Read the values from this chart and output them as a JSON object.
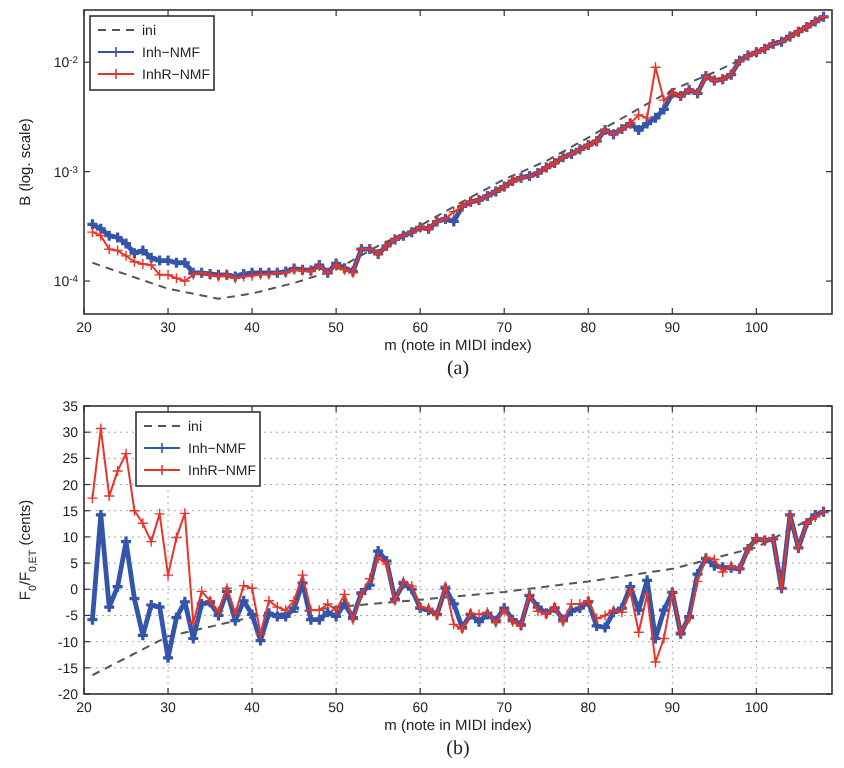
{
  "chart_data": [
    {
      "type": "line",
      "xlabel": "m (note in MIDI index)",
      "ylabel": "B (log. scale)",
      "log": "y",
      "xlim": [
        20,
        109
      ],
      "xticks": [
        20,
        30,
        40,
        50,
        60,
        70,
        80,
        90,
        100
      ],
      "ylim": [
        5e-05,
        0.03
      ],
      "yticks": [
        {
          "value": 0.0001,
          "label": "10$^{-4}$"
        },
        {
          "value": 0.001,
          "label": "10$^{-3}$"
        },
        {
          "value": 0.01,
          "label": "10$^{-2}$"
        }
      ],
      "grid": false,
      "legend": "top left",
      "annotations": [
        "(a)"
      ],
      "series": [
        {
          "name": "ini",
          "color": "#555555",
          "line_style": "dashed",
          "marker": "none",
          "x": [
            21,
            25,
            30,
            36,
            40,
            45,
            50,
            55,
            60,
            65,
            70,
            75,
            80,
            85,
            90,
            95,
            100,
            105,
            108
          ],
          "values": [
            0.000147,
            0.000115,
            8.5e-05,
            6.9e-05,
            7.7e-05,
            9.6e-05,
            0.000127,
            0.00021,
            0.00032,
            0.00053,
            0.00085,
            0.00125,
            0.00205,
            0.0034,
            0.0056,
            0.0081,
            0.0123,
            0.019,
            0.027
          ]
        },
        {
          "name": "Inh−NMF",
          "color": "#3355aa",
          "line_style": "solid",
          "marker": "cross",
          "x": [
            21,
            22,
            23,
            24,
            25,
            26,
            27,
            28,
            29,
            30,
            31,
            32,
            33,
            34,
            35,
            36,
            37,
            38,
            39,
            40,
            41,
            42,
            43,
            44,
            45,
            46,
            47,
            48,
            49,
            50,
            51,
            52,
            53,
            54,
            55,
            56,
            57,
            58,
            59,
            60,
            61,
            62,
            63,
            64,
            65,
            66,
            67,
            68,
            69,
            70,
            71,
            72,
            73,
            74,
            75,
            76,
            77,
            78,
            79,
            80,
            81,
            82,
            83,
            84,
            85,
            86,
            87,
            88,
            89,
            90,
            91,
            92,
            93,
            94,
            95,
            96,
            97,
            98,
            99,
            100,
            101,
            102,
            103,
            104,
            105,
            106,
            107,
            108
          ],
          "values": [
            0.00033,
            0.0003,
            0.00026,
            0.00025,
            0.00022,
            0.00018,
            0.00019,
            0.000163,
            0.000154,
            0.000154,
            0.000147,
            0.000147,
            0.000119,
            0.000119,
            0.000116,
            0.000114,
            0.000114,
            0.00011,
            0.000116,
            0.000119,
            0.000119,
            0.000119,
            0.000119,
            0.000122,
            0.00013,
            0.000127,
            0.000125,
            0.00014,
            0.000119,
            0.000145,
            0.000131,
            0.000122,
            0.000196,
            0.000196,
            0.000177,
            0.00021,
            0.00024,
            0.00026,
            0.00028,
            0.00031,
            0.0003,
            0.00035,
            0.00037,
            0.00035,
            0.00048,
            0.00053,
            0.00055,
            0.0006,
            0.00066,
            0.00073,
            0.00082,
            0.00088,
            0.00091,
            0.00097,
            0.00109,
            0.0012,
            0.00135,
            0.00145,
            0.0016,
            0.00175,
            0.0019,
            0.0024,
            0.0022,
            0.00245,
            0.00275,
            0.0024,
            0.00275,
            0.0031,
            0.0037,
            0.0052,
            0.0049,
            0.0056,
            0.0052,
            0.0075,
            0.0068,
            0.007,
            0.0077,
            0.0103,
            0.0115,
            0.0123,
            0.0133,
            0.0147,
            0.0154,
            0.0172,
            0.019,
            0.021,
            0.0235,
            0.026
          ]
        },
        {
          "name": "InhR−NMF",
          "color": "#e8352a",
          "line_style": "solid",
          "marker": "cross",
          "x": [
            21,
            22,
            23,
            24,
            25,
            26,
            27,
            28,
            29,
            30,
            31,
            32,
            33,
            34,
            35,
            36,
            37,
            38,
            39,
            40,
            41,
            42,
            43,
            44,
            45,
            46,
            47,
            48,
            49,
            50,
            51,
            52,
            53,
            54,
            55,
            56,
            57,
            58,
            59,
            60,
            61,
            62,
            63,
            64,
            65,
            66,
            67,
            68,
            69,
            70,
            71,
            72,
            73,
            74,
            75,
            76,
            77,
            78,
            79,
            80,
            81,
            82,
            83,
            84,
            85,
            86,
            87,
            88,
            89,
            90,
            91,
            92,
            93,
            94,
            95,
            96,
            97,
            98,
            99,
            100,
            101,
            102,
            103,
            104,
            105,
            106,
            107,
            108
          ],
          "values": [
            0.00028,
            0.00026,
            0.000195,
            0.00019,
            0.00017,
            0.00015,
            0.000143,
            0.00014,
            0.000114,
            0.000114,
            0.000106,
            0.0001,
            0.000115,
            0.000119,
            0.000114,
            0.00011,
            0.000114,
            0.000106,
            0.00011,
            0.000112,
            0.000115,
            0.000115,
            0.000119,
            0.000119,
            0.000127,
            0.000125,
            0.000122,
            0.000137,
            0.000119,
            0.00014,
            0.000127,
            0.000119,
            0.000196,
            0.000196,
            0.000177,
            0.00021,
            0.00024,
            0.00026,
            0.00028,
            0.00031,
            0.0003,
            0.00035,
            0.00037,
            0.00043,
            0.00048,
            0.00053,
            0.00055,
            0.0006,
            0.00066,
            0.00073,
            0.00082,
            0.00088,
            0.00091,
            0.00097,
            0.00109,
            0.0012,
            0.00135,
            0.00145,
            0.0016,
            0.00175,
            0.0019,
            0.0024,
            0.0022,
            0.00245,
            0.00275,
            0.0033,
            0.0031,
            0.009,
            0.0045,
            0.0052,
            0.0049,
            0.0056,
            0.0052,
            0.0075,
            0.0068,
            0.007,
            0.0077,
            0.0103,
            0.0115,
            0.0123,
            0.0133,
            0.0147,
            0.0154,
            0.0172,
            0.019,
            0.021,
            0.0235,
            0.026
          ]
        }
      ]
    },
    {
      "type": "line",
      "xlabel": "m (note in MIDI index)",
      "ylabel": "F$_{0}$/F$_{0,ET}$ (cents)",
      "xlim": [
        20,
        109
      ],
      "xticks": [
        20,
        30,
        40,
        50,
        60,
        70,
        80,
        90,
        100
      ],
      "ylim": [
        -20,
        35
      ],
      "yticks": [
        -20,
        -15,
        -10,
        -5,
        0,
        5,
        10,
        15,
        20,
        25,
        30,
        35
      ],
      "grid": true,
      "legend": "top left",
      "annotations": [
        "(b)"
      ],
      "series": [
        {
          "name": "ini",
          "color": "#555555",
          "line_style": "dashed",
          "marker": "none",
          "x": [
            21,
            30,
            40,
            50,
            60,
            70,
            80,
            90,
            100,
            108
          ],
          "values": [
            -16.4,
            -9,
            -5.3,
            -3.4,
            -2,
            -0.5,
            1.5,
            3.9,
            8,
            14.8
          ]
        },
        {
          "name": "Inh−NMF",
          "color": "#3355aa",
          "line_style": "solid",
          "marker": "cross",
          "x": [
            21,
            22,
            23,
            24,
            25,
            26,
            27,
            28,
            29,
            30,
            31,
            32,
            33,
            34,
            35,
            36,
            37,
            38,
            39,
            40,
            41,
            42,
            43,
            44,
            45,
            46,
            47,
            48,
            49,
            50,
            51,
            52,
            53,
            54,
            55,
            56,
            57,
            58,
            59,
            60,
            61,
            62,
            63,
            64,
            65,
            66,
            67,
            68,
            69,
            70,
            71,
            72,
            73,
            74,
            75,
            76,
            77,
            78,
            79,
            80,
            81,
            82,
            83,
            84,
            85,
            86,
            87,
            88,
            89,
            90,
            91,
            92,
            93,
            94,
            95,
            96,
            97,
            98,
            99,
            100,
            101,
            102,
            103,
            104,
            105,
            106,
            107,
            108
          ],
          "values": [
            -5.8,
            14.2,
            -3.4,
            0.5,
            9.1,
            -1.8,
            -8.8,
            -3,
            -3.4,
            -13.1,
            -5.4,
            -2.4,
            -9.4,
            -2.8,
            -2.5,
            -5,
            -0.4,
            -6,
            -2.2,
            -4.8,
            -9.8,
            -4.6,
            -5.2,
            -5.2,
            -3.6,
            1.2,
            -5.8,
            -5.8,
            -4.4,
            -5.2,
            -2.8,
            -5.4,
            -0.7,
            0.8,
            7.3,
            5.4,
            -1.9,
            1.1,
            0,
            -3.6,
            -4,
            -4.8,
            0.2,
            -2.8,
            -7.3,
            -4.8,
            -6.2,
            -4.8,
            -6,
            -3.6,
            -5.8,
            -6.8,
            -1.2,
            -3.4,
            -4.6,
            -3.6,
            -5.8,
            -4.2,
            -3.6,
            -2.4,
            -7,
            -7.3,
            -4.4,
            -3.6,
            0.5,
            -4,
            1.7,
            -9.4,
            -4,
            -0.6,
            -8.5,
            -5.2,
            2.9,
            5.9,
            4.5,
            4.2,
            4.1,
            3.9,
            7.7,
            9.7,
            9.3,
            9.6,
            0.2,
            14.2,
            7.9,
            12.6,
            14.2,
            14.8
          ]
        },
        {
          "name": "InhR−NMF",
          "color": "#e8352a",
          "line_style": "solid",
          "marker": "cross",
          "x": [
            21,
            22,
            23,
            24,
            25,
            26,
            27,
            28,
            29,
            30,
            31,
            32,
            33,
            34,
            35,
            36,
            37,
            38,
            39,
            40,
            41,
            42,
            43,
            44,
            45,
            46,
            47,
            48,
            49,
            50,
            51,
            52,
            53,
            54,
            55,
            56,
            57,
            58,
            59,
            60,
            61,
            62,
            63,
            64,
            65,
            66,
            67,
            68,
            69,
            70,
            71,
            72,
            73,
            74,
            75,
            76,
            77,
            78,
            79,
            80,
            81,
            82,
            83,
            84,
            85,
            86,
            87,
            88,
            89,
            90,
            91,
            92,
            93,
            94,
            95,
            96,
            97,
            98,
            99,
            100,
            101,
            102,
            103,
            104,
            105,
            106,
            107,
            108
          ],
          "values": [
            17.4,
            30.7,
            17.8,
            22.6,
            25.9,
            15,
            12.6,
            9.1,
            14.4,
            2.7,
            9.9,
            14.5,
            -6.4,
            -0.4,
            -2.2,
            -4.2,
            0.2,
            -4.6,
            0.7,
            0.2,
            -8.5,
            -2.2,
            -3.4,
            -4,
            -2.2,
            2.7,
            -4,
            -4,
            -2.8,
            -4,
            -1,
            -5.8,
            -1,
            2,
            6,
            4.8,
            -2.2,
            1.5,
            0.6,
            -3.4,
            -3.6,
            -5,
            0.6,
            -6.7,
            -7.6,
            -4.6,
            -4.8,
            -4.4,
            -6.4,
            -4,
            -6.2,
            -7,
            -1,
            -4.2,
            -4.8,
            -3.4,
            -6.2,
            -2.8,
            -2.8,
            -2.2,
            -5.6,
            -5,
            -4,
            -4.4,
            -0.4,
            -8.2,
            -1,
            -13.9,
            -9.4,
            -0.6,
            -8.2,
            -5.6,
            1.5,
            6,
            5.7,
            3.3,
            4.5,
            3.9,
            7.7,
            9.7,
            9.3,
            9.6,
            0.2,
            14.2,
            7.9,
            12.6,
            13.8,
            14.8
          ]
        }
      ]
    }
  ]
}
